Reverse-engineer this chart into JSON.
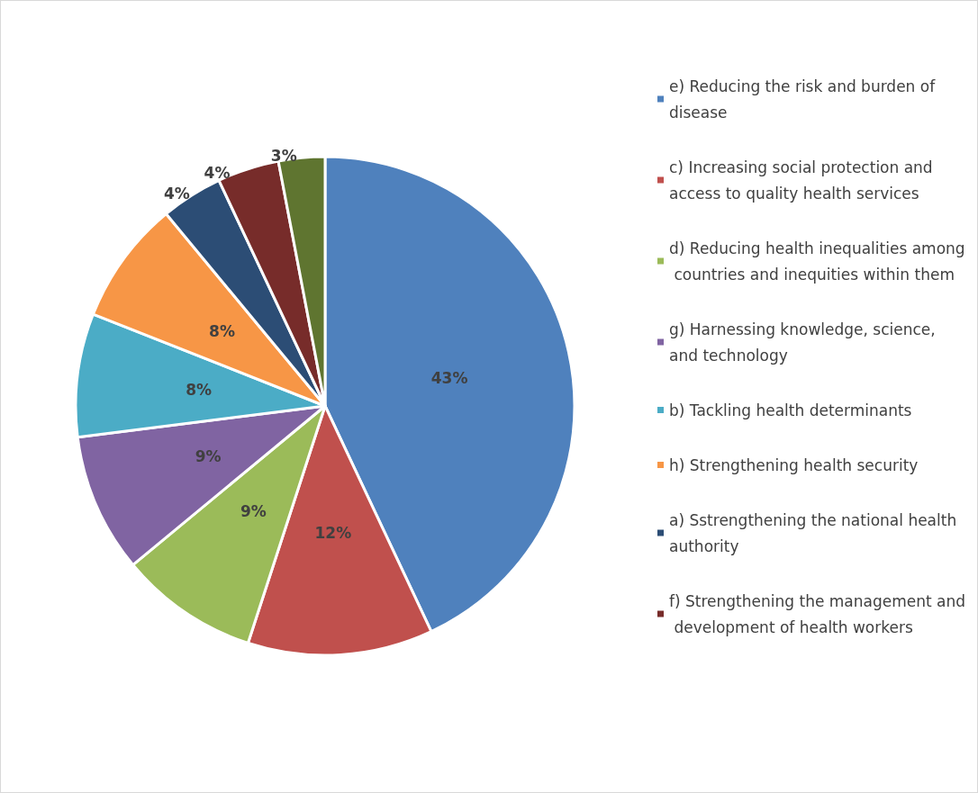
{
  "chart_data": {
    "type": "pie",
    "categories": [
      "e) Reducing the risk and burden of disease",
      "c) Increasing social protection and access to quality health services",
      "d) Reducing health inequalities among countries and inequities within them",
      "g) Harnessing knowledge, science, and technology",
      "b) Tackling health determinants",
      "h) Strengthening health security",
      "a) Sstrengthening the national health authority",
      "f) Strengthening the management and development of health workers",
      null
    ],
    "values": [
      43,
      12,
      9,
      9,
      8,
      8,
      4,
      4,
      3
    ],
    "colors": [
      "#4f81bd",
      "#c0504d",
      "#9bbb59",
      "#8064a2",
      "#4bacc6",
      "#f79646",
      "#2c4d75",
      "#772c2a",
      "#5f7530"
    ],
    "value_labels": [
      "43%",
      "12%",
      "9%",
      "9%",
      "8%",
      "8%",
      "4%",
      "4%",
      "3%"
    ],
    "legend": "right"
  }
}
